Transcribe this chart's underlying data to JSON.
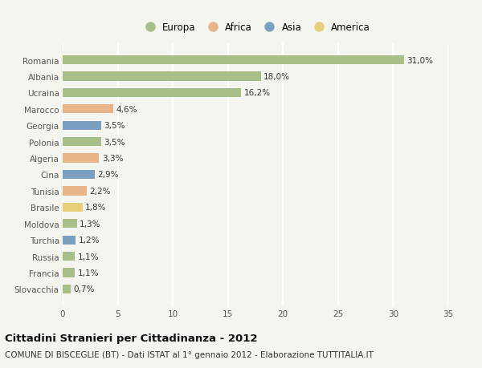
{
  "categories": [
    "Slovacchia",
    "Francia",
    "Russia",
    "Turchia",
    "Moldova",
    "Brasile",
    "Tunisia",
    "Cina",
    "Algeria",
    "Polonia",
    "Georgia",
    "Marocco",
    "Ucraina",
    "Albania",
    "Romania"
  ],
  "values": [
    0.7,
    1.1,
    1.1,
    1.2,
    1.3,
    1.8,
    2.2,
    2.9,
    3.3,
    3.5,
    3.5,
    4.6,
    16.2,
    18.0,
    31.0
  ],
  "continents": [
    "Europa",
    "Europa",
    "Europa",
    "Asia",
    "Europa",
    "America",
    "Africa",
    "Asia",
    "Africa",
    "Europa",
    "Asia",
    "Africa",
    "Europa",
    "Europa",
    "Europa"
  ],
  "colors": {
    "Europa": "#a8bf8a",
    "Africa": "#e8b48a",
    "Asia": "#7a9fc0",
    "America": "#e8d07a"
  },
  "legend_order": [
    "Europa",
    "Africa",
    "Asia",
    "America"
  ],
  "xlim": [
    0,
    35
  ],
  "xticks": [
    0,
    5,
    10,
    15,
    20,
    25,
    30,
    35
  ],
  "title": "Cittadini Stranieri per Cittadinanza - 2012",
  "subtitle": "COMUNE DI BISCEGLIE (BT) - Dati ISTAT al 1° gennaio 2012 - Elaborazione TUTTITALIA.IT",
  "background_color": "#f5f5f0",
  "grid_color": "#ffffff",
  "bar_height": 0.55,
  "label_fontsize": 7.5,
  "title_fontsize": 9.5,
  "subtitle_fontsize": 7.5,
  "legend_fontsize": 8.5,
  "tick_fontsize": 7.5
}
